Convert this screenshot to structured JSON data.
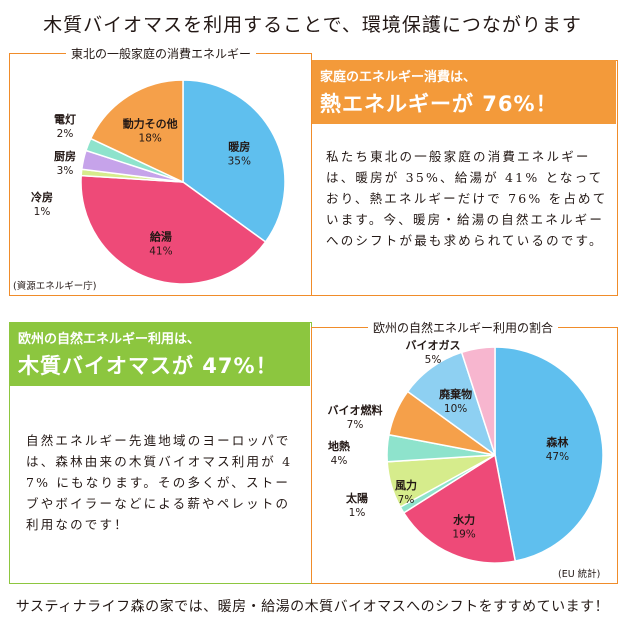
{
  "title": "木質バイオマスを利用することで、環境保護につながります",
  "footer": "サスティナライフ森の家では、暖房・給湯の木質バイオマスへのシフトをすすめています！",
  "top_section": {
    "frame_caption": "東北の一般家庭の消費エネルギー",
    "source_note": "(資源エネルギー庁)",
    "banner_line1": "家庭のエネルギー消費は、",
    "banner_line2": "熱エネルギーが 76%！",
    "paragraph": "私たち東北の一般家庭の消費エネルギーは、暖房が 35%、給湯が 41% となっており、熱エネルギーだけで 76% を占めています。今、暖房・給湯の自然エネルギーへのシフトが最も求められているのです。"
  },
  "bottom_section": {
    "frame_caption": "欧州の自然エネルギー利用の割合",
    "source_note": "(EU 統計)",
    "banner_line1": "欧州の自然エネルギー利用は、",
    "banner_line2": "木質バイオマスが 47%！",
    "paragraph": "自然エネルギー先進地域のヨーロッパでは、森林由来の木質バイオマス利用が 47% にもなります。その多くが、ストーブやボイラーなどによる薪やペレットの利用なのです！"
  },
  "colors": {
    "orange": "#f39a3a",
    "green": "#8cc63f",
    "pie_blue": "#5fbfee",
    "pie_pink": "#ee4a78",
    "pie_mint": "#8ee3cc",
    "pie_lavender": "#c6a3ea",
    "pie_orange": "#f5a04a",
    "pie_yellowgreen": "#d6ec8c",
    "pie_lightpink": "#f7b6cf"
  },
  "chart_data": [
    {
      "type": "pie",
      "title": "東北の一般家庭の消費エネルギー",
      "categories": [
        "暖房",
        "給湯",
        "冷房",
        "厨房",
        "電灯",
        "動力その他"
      ],
      "values": [
        35,
        41,
        1,
        3,
        2,
        18
      ],
      "value_labels": [
        "35%",
        "41%",
        "1%",
        "3%",
        "2%",
        "18%"
      ],
      "unit": "%",
      "start": "12 o'clock",
      "direction": "clockwise",
      "colors": [
        "#5fbfee",
        "#ee4a78",
        "#d6ec8c",
        "#c6a3ea",
        "#8ee3cc",
        "#f5a04a"
      ]
    },
    {
      "type": "pie",
      "title": "欧州の自然エネルギー利用の割合",
      "categories": [
        "森林",
        "水力",
        "太陽",
        "風力",
        "地熱",
        "バイオ燃料",
        "廃棄物",
        "バイオガス"
      ],
      "values": [
        47,
        19,
        1,
        7,
        4,
        7,
        10,
        5
      ],
      "value_labels": [
        "47%",
        "19%",
        "1%",
        "7%",
        "4%",
        "7%",
        "10%",
        "5%"
      ],
      "unit": "%",
      "start": "12 o'clock",
      "direction": "clockwise",
      "colors": [
        "#5fbfee",
        "#ee4a78",
        "#8ee3cc",
        "#d6ec8c",
        "#8ee3cc",
        "#f5a04a",
        "#8ed0f2",
        "#f7b6cf"
      ]
    }
  ]
}
